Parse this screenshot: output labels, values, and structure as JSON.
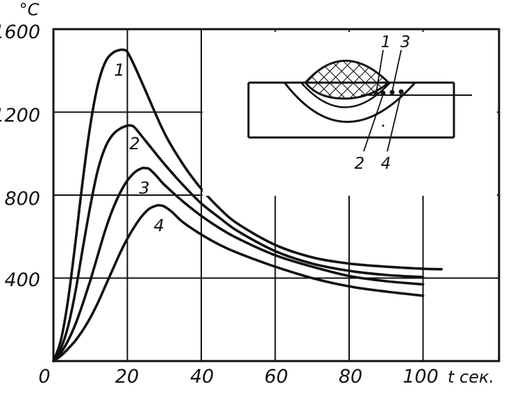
{
  "chart_data": {
    "type": "line",
    "ylabel": "°C",
    "xlabel": "t сек.",
    "xlim": [
      0,
      120
    ],
    "ylim": [
      0,
      1600
    ],
    "x_ticks": [
      "0",
      "20",
      "40",
      "60",
      "80",
      "100"
    ],
    "y_ticks": [
      "400",
      "800",
      "1200",
      "1600"
    ],
    "grid": true,
    "series": [
      {
        "name": "1",
        "x": [
          0,
          2,
          4,
          6,
          8,
          10,
          12,
          14,
          16,
          18,
          19,
          20,
          22,
          25,
          30,
          35,
          40,
          45,
          50,
          60,
          70,
          80,
          90,
          100,
          105
        ],
        "values": [
          0,
          100,
          300,
          580,
          880,
          1140,
          1330,
          1440,
          1485,
          1500,
          1500,
          1490,
          1420,
          1300,
          1100,
          950,
          830,
          735,
          660,
          560,
          500,
          470,
          455,
          445,
          443
        ]
      },
      {
        "name": "2",
        "x": [
          0,
          2,
          4,
          6,
          8,
          10,
          12,
          14,
          16,
          18,
          20,
          21,
          22,
          25,
          30,
          35,
          40,
          45,
          50,
          60,
          70,
          80,
          90,
          100
        ],
        "values": [
          0,
          60,
          170,
          340,
          550,
          750,
          920,
          1030,
          1090,
          1120,
          1135,
          1135,
          1125,
          1060,
          950,
          850,
          760,
          690,
          625,
          530,
          470,
          435,
          415,
          405
        ]
      },
      {
        "name": "3",
        "x": [
          0,
          2,
          4,
          6,
          8,
          10,
          12,
          14,
          16,
          18,
          20,
          22,
          24,
          25,
          26,
          28,
          30,
          35,
          40,
          45,
          50,
          60,
          70,
          80,
          90,
          100
        ],
        "values": [
          0,
          40,
          100,
          180,
          280,
          390,
          510,
          630,
          730,
          810,
          870,
          910,
          930,
          930,
          925,
          890,
          850,
          770,
          700,
          640,
          590,
          510,
          455,
          410,
          385,
          370
        ]
      },
      {
        "name": "4",
        "x": [
          0,
          2,
          4,
          6,
          8,
          10,
          12,
          14,
          16,
          18,
          20,
          22,
          24,
          26,
          28,
          29,
          30,
          32,
          35,
          40,
          45,
          50,
          60,
          70,
          80,
          90,
          100
        ],
        "values": [
          0,
          25,
          60,
          100,
          150,
          210,
          280,
          360,
          440,
          520,
          590,
          650,
          700,
          735,
          750,
          750,
          745,
          720,
          670,
          610,
          560,
          520,
          455,
          400,
          360,
          335,
          315
        ]
      }
    ],
    "inset": {
      "point_labels_top": [
        "1",
        "3"
      ],
      "point_labels_bottom": [
        "2",
        "4"
      ]
    }
  }
}
